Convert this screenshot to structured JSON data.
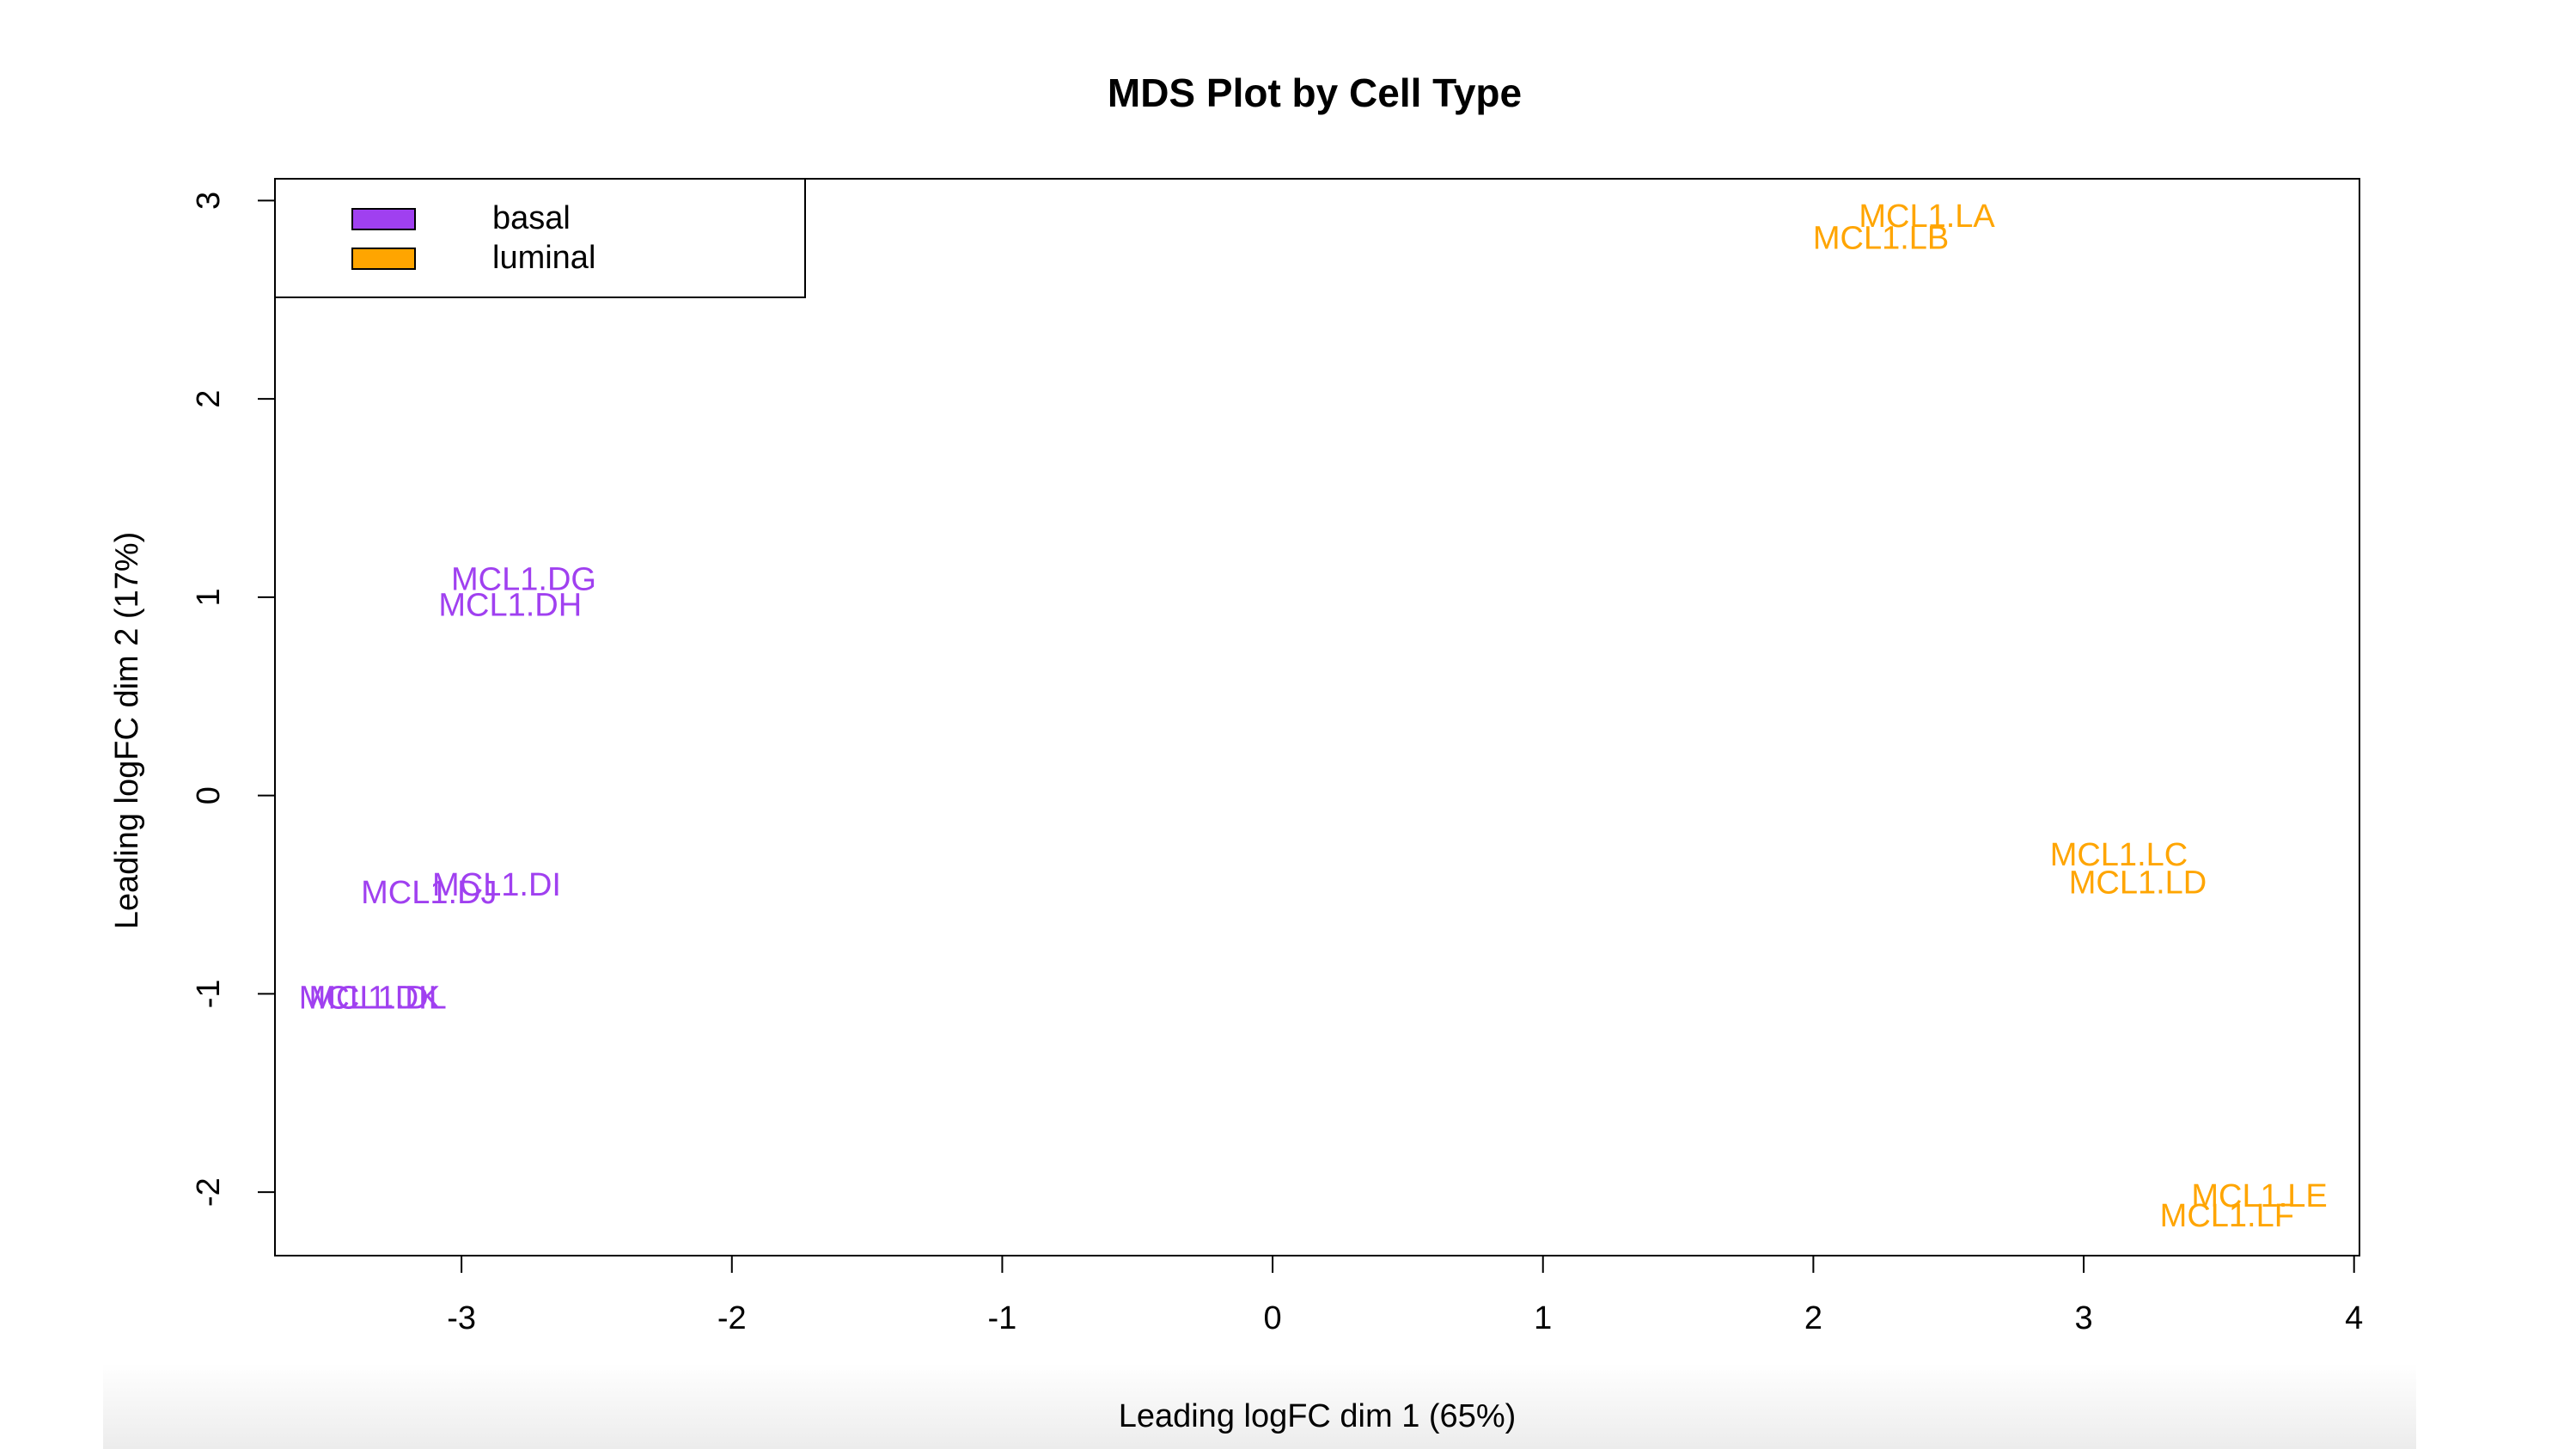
{
  "chart_data": {
    "type": "scatter",
    "title": "MDS Plot by Cell Type",
    "x_label": "Leading logFC dim 1 (65%)",
    "y_label": "Leading logFC dim 2 (17%)",
    "xlim": [
      -3.69,
      4.02
    ],
    "ylim": [
      -2.32,
      3.11
    ],
    "xticks": [
      -3,
      -2,
      -1,
      0,
      1,
      2,
      3,
      4
    ],
    "yticks": [
      -2,
      -1,
      0,
      1,
      2,
      3
    ],
    "legend": "top-left",
    "series": [
      {
        "name": "basal",
        "color": "#a040f0",
        "labels": [
          "MCL1.DG",
          "MCL1.DH",
          "MCL1.DI",
          "MCL1.DJ",
          "MCL1.DK",
          "MCL1.DL"
        ],
        "x": [
          -2.77,
          -2.82,
          -2.87,
          -3.12,
          -3.34,
          -3.31
        ],
        "values": [
          1.08,
          0.95,
          -0.46,
          -0.5,
          -1.03,
          -1.03
        ]
      },
      {
        "name": "luminal",
        "color": "#ffa500",
        "labels": [
          "MCL1.LA",
          "MCL1.LB",
          "MCL1.LC",
          "MCL1.LD",
          "MCL1.LE",
          "MCL1.LF"
        ],
        "x": [
          2.42,
          2.25,
          3.13,
          3.2,
          3.65,
          3.53
        ],
        "values": [
          2.91,
          2.8,
          -0.31,
          -0.45,
          -2.03,
          -2.13
        ]
      }
    ]
  }
}
